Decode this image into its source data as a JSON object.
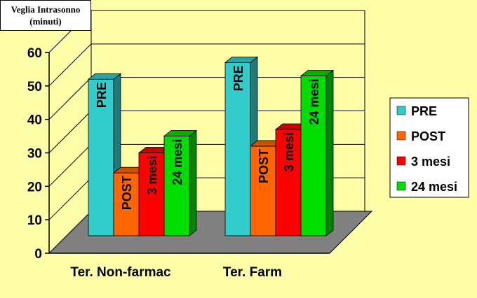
{
  "chart_data": {
    "type": "bar",
    "title": "Veglia Intrasonno",
    "subtitle": "(minuti)",
    "categories": [
      "Ter. Non-farmac",
      "Ter. Farm"
    ],
    "series": [
      {
        "name": "PRE",
        "label": "PRE",
        "color": "#33CCCC",
        "values": [
          52,
          57
        ]
      },
      {
        "name": "POST",
        "label": "POST",
        "color": "#FF6600",
        "values": [
          24,
          32
        ]
      },
      {
        "name": "3 mesi",
        "label": "3 mesi",
        "color": "#FF0000",
        "values": [
          30,
          37
        ]
      },
      {
        "name": "24 mesi",
        "label": "24 mesi",
        "color": "#00DD00",
        "values": [
          35,
          53
        ]
      }
    ],
    "yticks": [
      "0",
      "10",
      "20",
      "30",
      "40",
      "50",
      "60"
    ],
    "ylim": [
      0,
      60
    ],
    "grid": true,
    "legend_position": "right"
  }
}
